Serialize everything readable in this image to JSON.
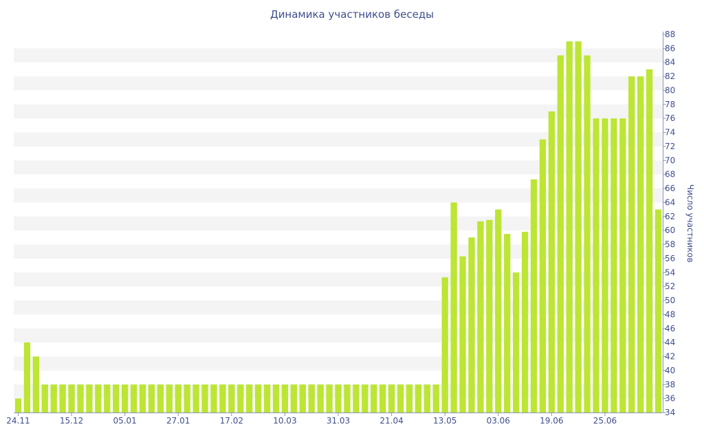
{
  "chart_data": {
    "type": "bar",
    "title": "Динамика участников беседы",
    "xlabel": "",
    "ylabel": "Число участников",
    "ylim": [
      34,
      88
    ],
    "yticks": [
      34,
      36,
      38,
      40,
      42,
      44,
      46,
      48,
      50,
      52,
      54,
      56,
      58,
      60,
      62,
      64,
      66,
      68,
      70,
      72,
      74,
      76,
      78,
      80,
      82,
      84,
      86,
      88
    ],
    "y_axis_side": "right",
    "grid": "alternating horizontal bands",
    "xticks": [
      "24.11",
      "15.12",
      "05.01",
      "27.01",
      "17.02",
      "10.03",
      "31.03",
      "21.04",
      "13.05",
      "03.06",
      "19.06",
      "25.06"
    ],
    "xtick_positions": [
      0,
      6,
      12,
      18,
      24,
      30,
      36,
      42,
      48,
      54,
      60,
      66
    ],
    "values": [
      36,
      44,
      42,
      38,
      38,
      38,
      38,
      38,
      38,
      38,
      38,
      38,
      38,
      38,
      38,
      38,
      38,
      38,
      38,
      38,
      38,
      38,
      38,
      38,
      38,
      38,
      38,
      38,
      38,
      38,
      38,
      38,
      38,
      38,
      38,
      38,
      38,
      38,
      38,
      38,
      38,
      38,
      38,
      38,
      38,
      38,
      38,
      38,
      53.3,
      64,
      56.3,
      59,
      61.3,
      61.5,
      63,
      59.5,
      54,
      59.8,
      67.3,
      73,
      77,
      85,
      87,
      87,
      85,
      76,
      76,
      76,
      76,
      82,
      82,
      83,
      63
    ],
    "bar_color": "#bde534"
  }
}
